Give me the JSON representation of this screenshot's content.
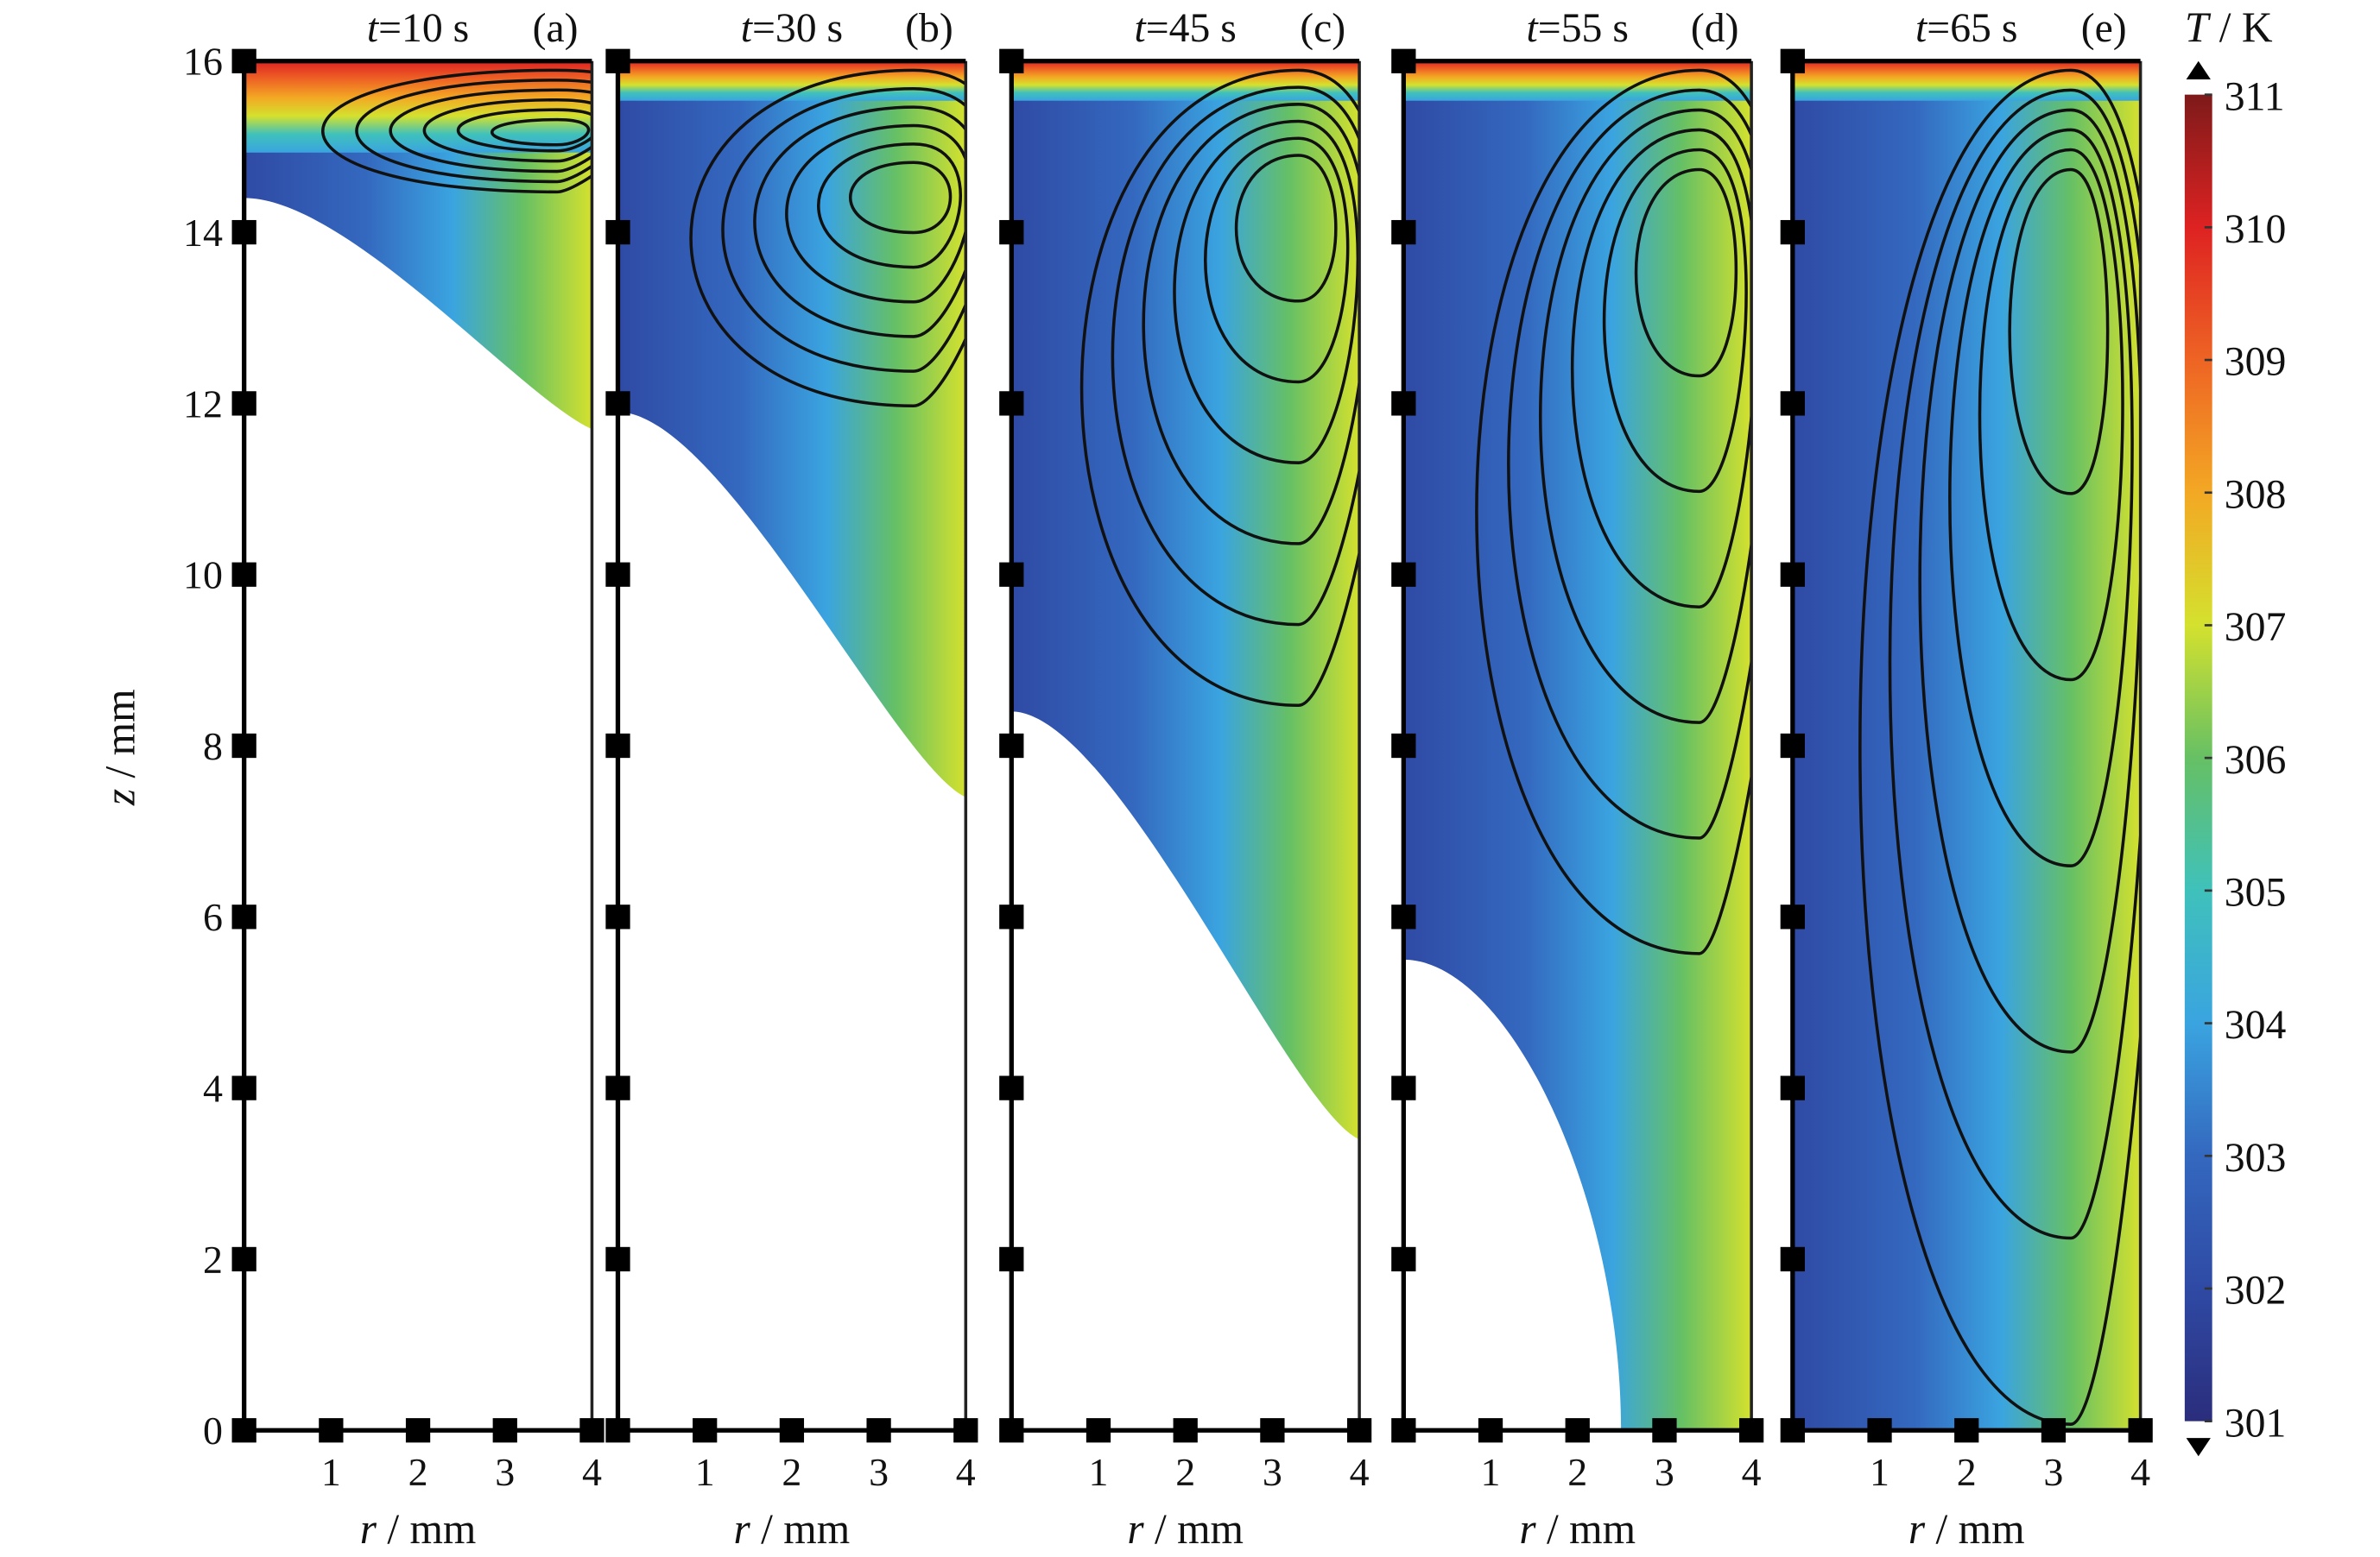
{
  "chart_data": {
    "type": "heatmap",
    "panels": [
      {
        "label": "(a)",
        "time_var": "t",
        "time_text": "=10 s",
        "front_z_at_r0": 14.4,
        "front_z_at_r4": 11.7,
        "vortex_center": [
          3.6,
          15.2
        ]
      },
      {
        "label": "(b)",
        "time_var": "t",
        "time_text": "=30 s",
        "front_z_at_r0": 11.9,
        "front_z_at_r4": 7.4,
        "vortex_center": [
          3.4,
          14.6
        ]
      },
      {
        "label": "(c)",
        "time_var": "t",
        "time_text": "=45 s",
        "front_z_at_r0": 8.4,
        "front_z_at_r4": 3.4,
        "vortex_center": [
          3.3,
          14.7
        ]
      },
      {
        "label": "(d)",
        "time_var": "t",
        "time_text": "=55 s",
        "front_z_at_r0": 5.5,
        "front_z_at_r4": 0,
        "vortex_center": [
          3.4,
          14.5
        ]
      },
      {
        "label": "(e)",
        "time_var": "t",
        "time_text": "=65 s",
        "front_z_at_r0": 0,
        "front_z_at_r4": 0,
        "vortex_center": [
          3.2,
          14.5
        ]
      }
    ],
    "xlabel_var": "r",
    "xlabel_unit": " / mm",
    "ylabel_var": "z",
    "ylabel_unit": " / mm",
    "xlim": [
      0,
      4
    ],
    "ylim": [
      0,
      16
    ],
    "xticks": [
      "1",
      "2",
      "3",
      "4"
    ],
    "yticks": [
      "0",
      "2",
      "4",
      "6",
      "8",
      "10",
      "12",
      "14",
      "16"
    ],
    "colorbar": {
      "title_var": "T",
      "title_unit": " / K",
      "range": [
        301,
        311
      ],
      "ticks": [
        "301",
        "302",
        "303",
        "304",
        "305",
        "306",
        "307",
        "308",
        "309",
        "310",
        "311"
      ],
      "colors": [
        "#2b2d7c",
        "#2f4aa4",
        "#3468bf",
        "#3aa4e0",
        "#3fc1bb",
        "#66c064",
        "#d4e12e",
        "#f3a824",
        "#ee6424",
        "#de2222",
        "#7e1a1a"
      ]
    }
  }
}
